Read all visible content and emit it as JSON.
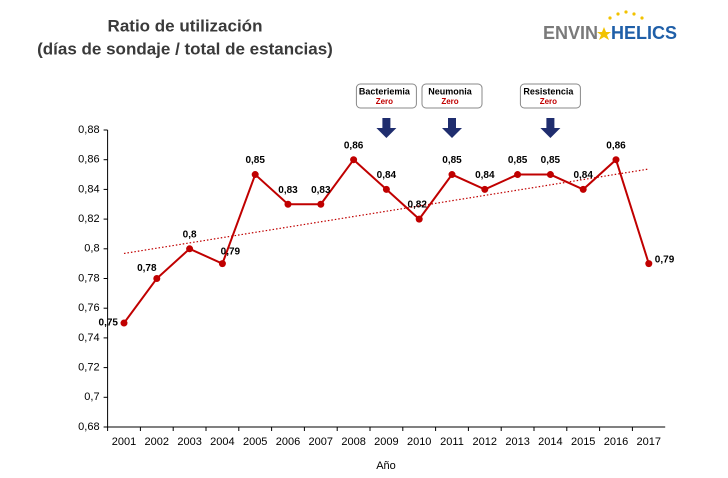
{
  "chart_data": {
    "type": "line",
    "title": "Ratio de utilización",
    "subtitle": "(días de sondaje / total de estancias)",
    "logo": [
      "ENVIN",
      "HELICS"
    ],
    "annotations": [
      {
        "text": "Bacteriemia",
        "sub": "Zero",
        "category": "2009"
      },
      {
        "text": "Neumonia",
        "sub": "Zero",
        "category": "2011"
      },
      {
        "text": "Resistencia",
        "sub": "Zero",
        "category": "2014"
      }
    ],
    "x_label": "Año",
    "categories": [
      "2001",
      "2002",
      "2003",
      "2004",
      "2005",
      "2006",
      "2007",
      "2008",
      "2009",
      "2010",
      "2011",
      "2012",
      "2013",
      "2014",
      "2015",
      "2016",
      "2017"
    ],
    "series": [
      {
        "color": "#c00000",
        "values": [
          0.75,
          0.78,
          0.8,
          0.79,
          0.85,
          0.83,
          0.83,
          0.86,
          0.84,
          0.82,
          0.85,
          0.84,
          0.85,
          0.85,
          0.84,
          0.86,
          0.79
        ],
        "value_labels": [
          "0,75",
          "0,78",
          "0,8",
          "0,79",
          "0,85",
          "0,83",
          "0,83",
          "0,86",
          "0,84",
          "0,82",
          "0,85",
          "0,84",
          "0,85",
          "0,85",
          "0,84",
          "0,86",
          "0,79"
        ]
      }
    ],
    "trendline": true,
    "ylim": [
      0.68,
      0.88
    ],
    "yticks": [
      {
        "value": 0.68,
        "label": "0,68"
      },
      {
        "value": 0.7,
        "label": "0,7"
      },
      {
        "value": 0.72,
        "label": "0,72"
      },
      {
        "value": 0.74,
        "label": "0,74"
      },
      {
        "value": 0.76,
        "label": "0,76"
      },
      {
        "value": 0.78,
        "label": "0,78"
      },
      {
        "value": 0.8,
        "label": "0,8"
      },
      {
        "value": 0.82,
        "label": "0,82"
      },
      {
        "value": 0.84,
        "label": "0,84"
      },
      {
        "value": 0.86,
        "label": "0,86"
      },
      {
        "value": 0.88,
        "label": "0,88"
      }
    ]
  }
}
